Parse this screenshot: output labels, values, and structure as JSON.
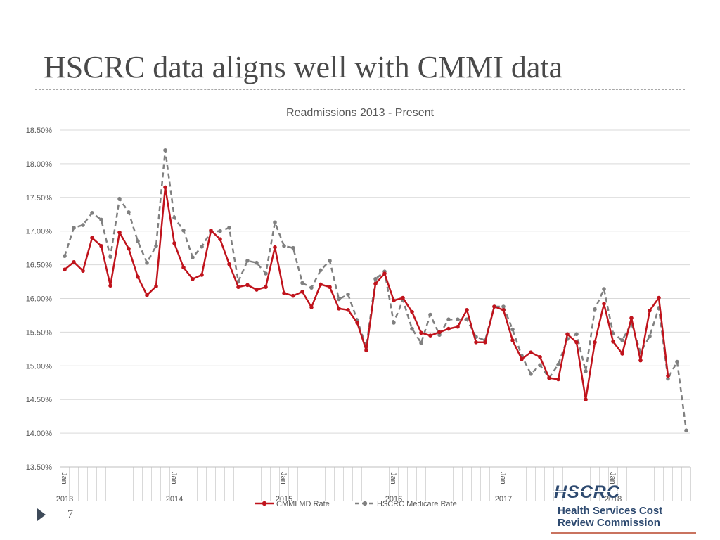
{
  "slide": {
    "title": "HSCRC data aligns well with CMMI data",
    "page_number": "7"
  },
  "logo": {
    "mark": "HSCRC",
    "line1": "Health Services Cost",
    "line2": "Review Commission"
  },
  "colors": {
    "cmmi": "#c0131c",
    "hscrc": "#808080",
    "grid": "#d9d9d9",
    "text": "#595959"
  },
  "chart_data": {
    "type": "line",
    "title": "Readmissions 2013 - Present",
    "xlabel": "",
    "ylabel": "",
    "ylim": [
      13.5,
      18.5
    ],
    "ytick_step": 0.5,
    "ytick_format": "percent_2dp",
    "grid": true,
    "legend_position": "bottom",
    "n_points": 69,
    "x_unit": "month",
    "x_start": "Jan 2013",
    "year_ticks": [
      {
        "index": 0,
        "month": "Jan",
        "year": "2013"
      },
      {
        "index": 12,
        "month": "Jan",
        "year": "2014"
      },
      {
        "index": 24,
        "month": "Jan",
        "year": "2015"
      },
      {
        "index": 36,
        "month": "Jan",
        "year": "2016"
      },
      {
        "index": 48,
        "month": "Jan",
        "year": "2017"
      },
      {
        "index": 60,
        "month": "Jan",
        "year": "2018"
      }
    ],
    "series": [
      {
        "name": "CMMI MD Rate",
        "style": "solid",
        "values": [
          16.43,
          16.54,
          16.41,
          16.9,
          16.78,
          16.19,
          16.98,
          16.74,
          16.32,
          16.05,
          16.18,
          17.65,
          16.82,
          16.46,
          16.29,
          16.35,
          17.01,
          16.88,
          16.51,
          16.17,
          16.2,
          16.13,
          16.17,
          16.76,
          16.08,
          16.04,
          16.1,
          15.87,
          16.21,
          16.17,
          15.85,
          15.83,
          15.64,
          15.23,
          16.22,
          16.37,
          15.97,
          16.01,
          15.8,
          15.49,
          15.45,
          15.5,
          15.55,
          15.58,
          15.83,
          15.35,
          15.35,
          15.88,
          15.83,
          15.38,
          15.1,
          15.2,
          15.13,
          14.82,
          14.8,
          15.47,
          15.35,
          14.5,
          15.35,
          15.92,
          15.36,
          15.18,
          15.71,
          15.08,
          15.82,
          16.01,
          14.85
        ]
      },
      {
        "name": "HSCRC Medicare Rate",
        "style": "dashed",
        "values": [
          16.63,
          17.05,
          17.09,
          17.27,
          17.17,
          16.62,
          17.48,
          17.28,
          16.85,
          16.53,
          16.78,
          18.2,
          17.2,
          17.01,
          16.61,
          16.77,
          16.99,
          17.0,
          17.05,
          16.25,
          16.56,
          16.53,
          16.37,
          17.13,
          16.78,
          16.75,
          16.23,
          16.16,
          16.42,
          16.56,
          15.99,
          16.06,
          15.68,
          15.28,
          16.29,
          16.4,
          15.64,
          15.98,
          15.55,
          15.34,
          15.76,
          15.46,
          15.69,
          15.69,
          15.69,
          15.43,
          15.38,
          15.88,
          15.88,
          15.54,
          15.15,
          14.88,
          15.01,
          14.82,
          15.02,
          15.4,
          15.47,
          14.92,
          15.84,
          16.14,
          15.48,
          15.38,
          15.63,
          15.2,
          15.44,
          15.86,
          14.81,
          15.06,
          14.04
        ]
      }
    ]
  }
}
